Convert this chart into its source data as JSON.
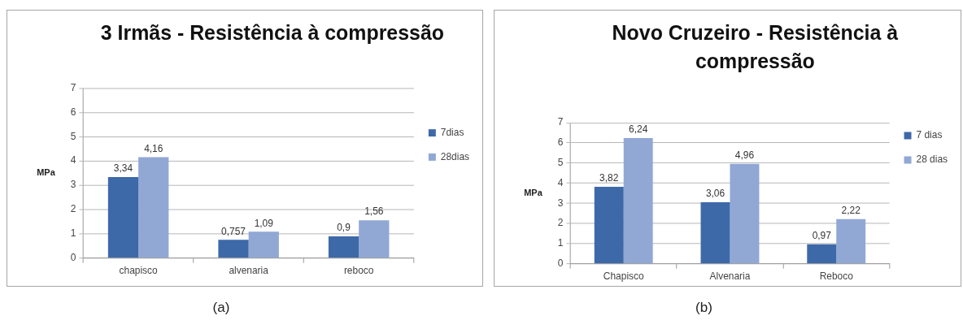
{
  "chart_data": [
    {
      "type": "bar",
      "title": "3 Irmãs - Resistência à compressão",
      "ylabel": "MPa",
      "categories": [
        "chapisco",
        "alvenaria",
        "reboco"
      ],
      "series": [
        {
          "name": "7dias",
          "color": "#3d69a8",
          "values": [
            3.34,
            0.757,
            0.9
          ],
          "value_labels": [
            "3,34",
            "0,757",
            "0,9"
          ]
        },
        {
          "name": "28dias",
          "color": "#91a8d5",
          "values": [
            4.16,
            1.09,
            1.56
          ],
          "value_labels": [
            "4,16",
            "1,09",
            "1,56"
          ]
        }
      ],
      "ylim": [
        0,
        7
      ],
      "yticks": [
        0,
        1,
        2,
        3,
        4,
        5,
        6,
        7
      ],
      "grid": "y",
      "legend": "right",
      "annotations": [
        "(a)"
      ]
    },
    {
      "type": "bar",
      "title": "Novo Cruzeiro - Resistência à compressão",
      "ylabel": "MPa",
      "categories": [
        "Chapisco",
        "Alvenaria",
        "Reboco"
      ],
      "series": [
        {
          "name": "7 dias",
          "color": "#3d69a8",
          "values": [
            3.82,
            3.06,
            0.97
          ],
          "value_labels": [
            "3,82",
            "3,06",
            "0,97"
          ]
        },
        {
          "name": "28 dias",
          "color": "#91a8d5",
          "values": [
            6.24,
            4.96,
            2.22
          ],
          "value_labels": [
            "6,24",
            "4,96",
            "2,22"
          ]
        }
      ],
      "ylim": [
        0,
        7
      ],
      "yticks": [
        0,
        1,
        2,
        3,
        4,
        5,
        6,
        7
      ],
      "grid": "y",
      "legend": "right",
      "annotations": [
        "(b)"
      ]
    }
  ]
}
